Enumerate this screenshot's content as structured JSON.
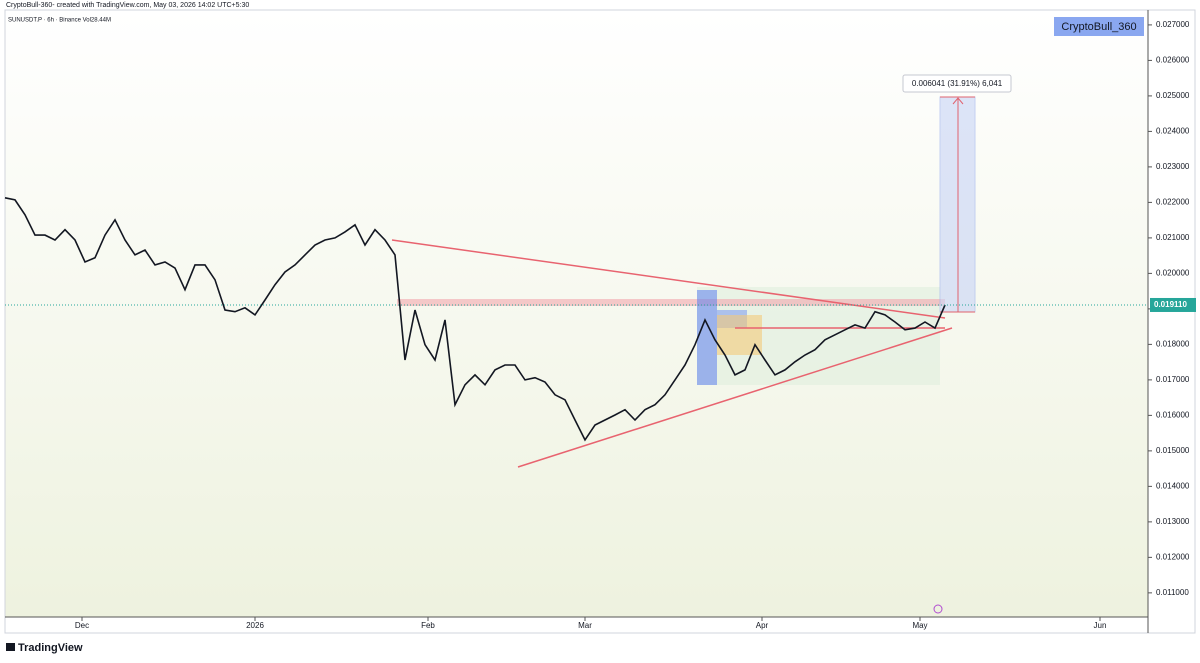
{
  "header": "CryptoBull-360- created with TradingView.com, May 03, 2026 14:02 UTC+5:30",
  "symbol_line": "SUNUSDT.P · 6h · Binance  Vol28.44M",
  "watermark_box": "CryptoBull_360",
  "measure_label": "0.006041 (31.91%) 6,041",
  "footer_logo": "TradingView",
  "chart_data": {
    "type": "line",
    "color": "#131722",
    "values": [
      0.02213,
      0.02207,
      0.02165,
      0.02108,
      0.02108,
      0.02094,
      0.02123,
      0.02094,
      0.02032,
      0.02044,
      0.02108,
      0.02151,
      0.02094,
      0.02052,
      0.02066,
      0.02024,
      0.02032,
      0.02015,
      0.01954,
      0.02024,
      0.02024,
      0.01982,
      0.01897,
      0.01892,
      0.01903,
      0.01883,
      0.01925,
      0.01968,
      0.02004,
      0.02024,
      0.02052,
      0.0208,
      0.02094,
      0.021,
      0.02117,
      0.02137,
      0.0208,
      0.02123,
      0.02094,
      0.02052,
      0.01756,
      0.01897,
      0.01799,
      0.01756,
      0.01869,
      0.0163,
      0.01686,
      0.01714,
      0.01686,
      0.01728,
      0.01742,
      0.01742,
      0.017,
      0.01706,
      0.01694,
      0.01658,
      0.01644,
      0.01587,
      0.01531,
      0.01573,
      0.01587,
      0.01601,
      0.01616,
      0.01587,
      0.01616,
      0.0163,
      0.01658,
      0.017,
      0.01742,
      0.01799,
      0.01869,
      0.01813,
      0.0177,
      0.01714,
      0.01728,
      0.01799,
      0.01756,
      0.01714,
      0.01728,
      0.01751,
      0.0177,
      0.01785,
      0.01813,
      0.01827,
      0.01841,
      0.01855,
      0.01846,
      0.01892,
      0.01883,
      0.01863,
      0.01841,
      0.01846,
      0.01863,
      0.01846,
      0.01911
    ],
    "xlim": [
      0,
      114.3
    ],
    "xticks": [
      {
        "value": 7.7,
        "label": "Dec"
      },
      {
        "value": 25,
        "label": "2026"
      },
      {
        "value": 42.3,
        "label": "Feb"
      },
      {
        "value": 58,
        "label": "Mar"
      },
      {
        "value": 75.7,
        "label": "Apr"
      },
      {
        "value": 91.5,
        "label": "May"
      },
      {
        "value": 109.5,
        "label": "Jun"
      }
    ],
    "ylim": [
      0.01032,
      0.02742
    ],
    "yticks": [
      {
        "value": 0.011,
        "label": "0.011000"
      },
      {
        "value": 0.012,
        "label": "0.012000"
      },
      {
        "value": 0.013,
        "label": "0.013000"
      },
      {
        "value": 0.014,
        "label": "0.014000"
      },
      {
        "value": 0.015,
        "label": "0.015000"
      },
      {
        "value": 0.016,
        "label": "0.016000"
      },
      {
        "value": 0.017,
        "label": "0.017000"
      },
      {
        "value": 0.018,
        "label": "0.018000"
      },
      {
        "value": 0.019,
        "label": "0.019000"
      },
      {
        "value": 0.02,
        "label": "0.020000"
      },
      {
        "value": 0.021,
        "label": "0.021000"
      },
      {
        "value": 0.022,
        "label": "0.022000"
      },
      {
        "value": 0.023,
        "label": "0.023000"
      },
      {
        "value": 0.024,
        "label": "0.024000"
      },
      {
        "value": 0.025,
        "label": "0.025000"
      },
      {
        "value": 0.026,
        "label": "0.026000"
      },
      {
        "value": 0.027,
        "label": "0.027000"
      }
    ],
    "last_price": {
      "value": 0.01911,
      "label": "0.019110"
    }
  }
}
